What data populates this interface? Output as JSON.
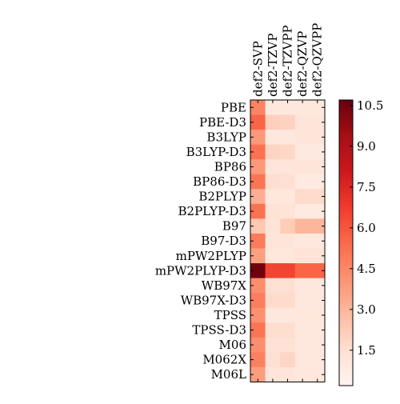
{
  "chart_data": {
    "type": "heatmap",
    "title": "",
    "xlabel": "",
    "ylabel": "",
    "columns": [
      "def2-SVP",
      "def2-TZVP",
      "def2-TZVPP",
      "def2-QZVP",
      "def2-QZVPP"
    ],
    "rows": [
      "PBE",
      "PBE-D3",
      "B3LYP",
      "B3LYP-D3",
      "BP86",
      "BP86-D3",
      "B2PLYP",
      "B2PLYP-D3",
      "B97",
      "B97-D3",
      "mPW2PLYP",
      "mPW2PLYP-D3",
      "WB97X",
      "WB97X-D3",
      "TPSS",
      "TPSS-D3",
      "M06",
      "M062X",
      "M06L"
    ],
    "values": [
      [
        4.6,
        1.0,
        1.0,
        1.1,
        1.1
      ],
      [
        5.6,
        2.1,
        2.0,
        1.2,
        1.2
      ],
      [
        3.9,
        1.0,
        1.0,
        1.2,
        1.2
      ],
      [
        5.2,
        1.9,
        1.8,
        0.9,
        0.9
      ],
      [
        3.9,
        1.2,
        1.2,
        1.2,
        1.2
      ],
      [
        5.1,
        1.6,
        1.5,
        0.9,
        0.9
      ],
      [
        3.2,
        1.1,
        1.1,
        1.7,
        1.7
      ],
      [
        5.2,
        1.4,
        1.3,
        0.9,
        0.9
      ],
      [
        2.4,
        1.3,
        2.2,
        3.0,
        3.0
      ],
      [
        4.9,
        1.2,
        1.2,
        1.0,
        1.0
      ],
      [
        3.7,
        1.1,
        1.1,
        1.3,
        1.3
      ],
      [
        10.5,
        6.5,
        6.5,
        5.6,
        5.6
      ],
      [
        4.3,
        1.5,
        1.5,
        1.0,
        1.0
      ],
      [
        4.8,
        1.7,
        1.7,
        1.0,
        1.0
      ],
      [
        4.2,
        1.0,
        1.0,
        1.1,
        1.1
      ],
      [
        5.1,
        1.6,
        1.6,
        1.0,
        1.0
      ],
      [
        4.3,
        1.4,
        1.4,
        1.0,
        1.0
      ],
      [
        4.7,
        1.5,
        1.9,
        1.0,
        1.0
      ],
      [
        3.8,
        1.2,
        1.2,
        1.0,
        1.0
      ]
    ],
    "colormap": "Reds",
    "color_range": [
      0.2,
      10.7
    ],
    "colorbar_ticks": [
      "1.5",
      "3.0",
      "4.5",
      "6.0",
      "7.5",
      "9.0",
      "10.5"
    ],
    "colorbar_position": "right",
    "grid": false
  }
}
